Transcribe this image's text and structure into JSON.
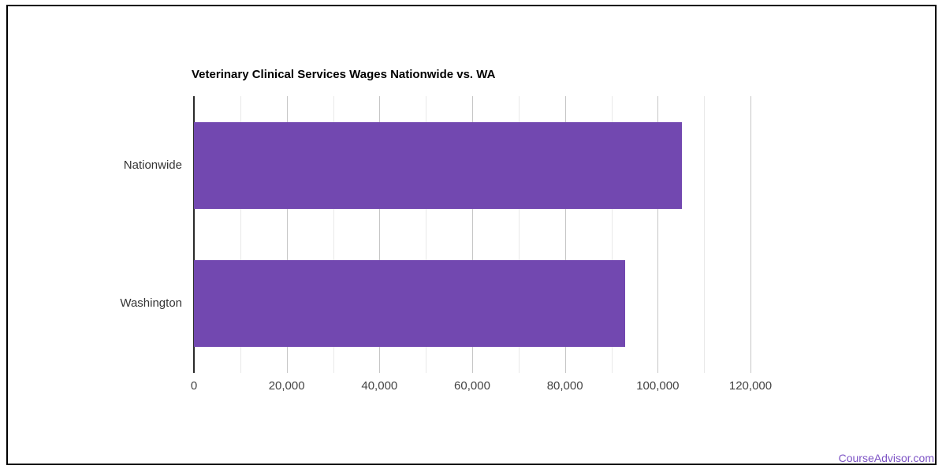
{
  "frame": {
    "border_color": "#000000",
    "background": "#ffffff"
  },
  "chart_data": {
    "type": "bar",
    "orientation": "horizontal",
    "title": "Veterinary Clinical Services Wages Nationwide vs. WA",
    "categories": [
      "Nationwide",
      "Washington"
    ],
    "values": [
      105200,
      93000
    ],
    "xlabel": "",
    "ylabel": "",
    "xlim": [
      0,
      120000
    ],
    "x_tick_interval_major": 20000,
    "x_tick_interval_minor": 10000,
    "x_tick_labels": [
      "0",
      "20,000",
      "40,000",
      "60,000",
      "80,000",
      "100,000",
      "120,000"
    ],
    "bar_color": "#7248b0",
    "grid": true,
    "major_grid_color": "#c6c6c6",
    "minor_grid_color": "#e9e9e9",
    "axis_line_color": "#2b2b2b",
    "title_color": "#000000",
    "category_label_color": "#333333",
    "tick_label_color": "#444444",
    "legend": "none"
  },
  "footer": {
    "link_text": "CourseAdvisor.com",
    "link_color": "#7d53c5"
  }
}
